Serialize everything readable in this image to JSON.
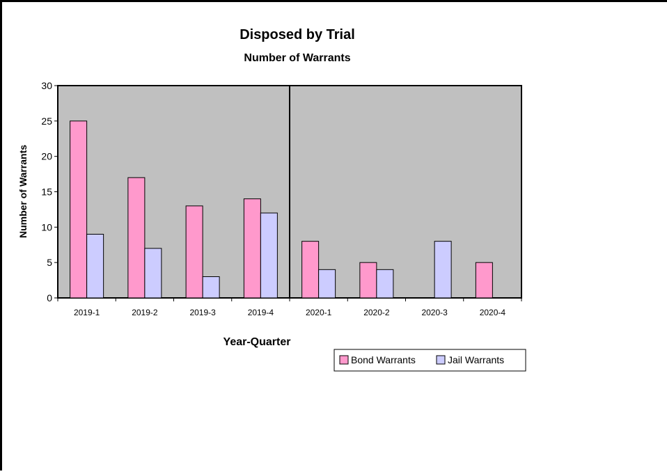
{
  "chart_data": {
    "type": "bar",
    "title": "Disposed by Trial",
    "subtitle": "Number of Warrants",
    "xlabel": "Year-Quarter",
    "ylabel": "Number of Warrants",
    "ylim": [
      0,
      30
    ],
    "yticks": [
      0,
      5,
      10,
      15,
      20,
      25,
      30
    ],
    "categories": [
      "2019-1",
      "2019-2",
      "2019-3",
      "2019-4",
      "2020-1",
      "2020-2",
      "2020-3",
      "2020-4"
    ],
    "series": [
      {
        "name": "Bond Warrants",
        "color": "#ff99cc",
        "values": [
          25,
          17,
          13,
          14,
          8,
          5,
          0,
          5
        ]
      },
      {
        "name": "Jail Warrants",
        "color": "#ccccff",
        "values": [
          9,
          7,
          3,
          12,
          4,
          4,
          8,
          0
        ]
      }
    ],
    "plot_background": "#c0c0c0",
    "divider_after_category": "2019-4",
    "legend_position": "bottom-right",
    "grid": false
  }
}
